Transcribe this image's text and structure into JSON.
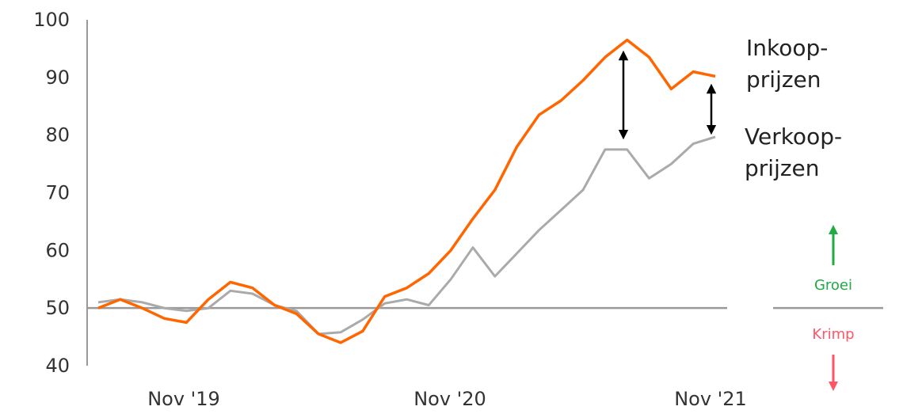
{
  "chart_data": {
    "type": "line",
    "yticks": [
      40,
      50,
      60,
      70,
      80,
      90,
      100
    ],
    "xtick_labels": [
      "Nov '19",
      "Nov '20",
      "Nov '21"
    ],
    "ylim": [
      40,
      100
    ],
    "reference_line": 50,
    "series": [
      {
        "name": "Inkoop-prijzen",
        "color": "#FF6600",
        "values": [
          50,
          51.5,
          50,
          48.2,
          47.5,
          51.5,
          54.5,
          53.5,
          50.5,
          49,
          45.5,
          44,
          46,
          52,
          53.5,
          56,
          60,
          65.5,
          70.5,
          78,
          83.5,
          86,
          89.5,
          93.5,
          96.5,
          93.5,
          88,
          91,
          90.2
        ]
      },
      {
        "name": "Verkoop-prijzen",
        "color": "#AAAAAA",
        "values": [
          51,
          51.5,
          51,
          50,
          49.5,
          50,
          53,
          52.5,
          50.5,
          49.5,
          45.5,
          45.8,
          48,
          50.8,
          51.5,
          50.5,
          55,
          60.5,
          55.5,
          59.5,
          63.5,
          67,
          70.5,
          77.5,
          77.5,
          72.5,
          75,
          78.5,
          79.7
        ]
      }
    ],
    "labels": {
      "inkoop_line1": "Inkoop-",
      "inkoop_line2": "prijzen",
      "verkoop_line1": "Verkoop-",
      "verkoop_line2": "prijzen"
    },
    "legend": {
      "groei": "Groei",
      "krimp": "Krimp",
      "groei_color": "#22AA44",
      "krimp_color": "#FF5566"
    }
  }
}
